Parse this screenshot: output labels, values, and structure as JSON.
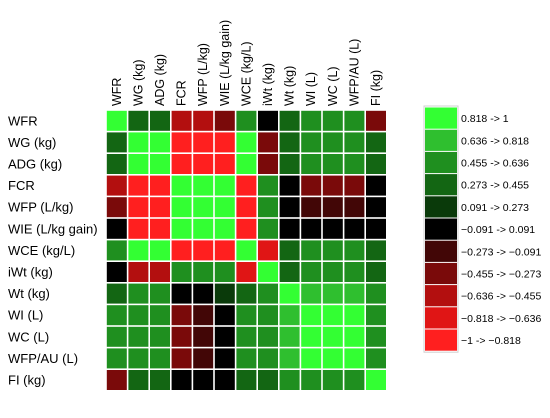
{
  "chart_data": {
    "type": "heatmap",
    "columns": [
      "WFR",
      "WG (kg)",
      "ADG (kg)",
      "FCR",
      "WFP (L/kg)",
      "WIE (L/kg gain)",
      "WCE (kg/L)",
      "iWt (kg)",
      "Wt (kg)",
      "WI (L)",
      "WC (L)",
      "WFP/AU (L)",
      "FI (kg)"
    ],
    "rows": [
      "WFR",
      "WG (kg)",
      "ADG (kg)",
      "FCR",
      "WFP (L/kg)",
      "WIE (L/kg gain)",
      "WCE (kg/L)",
      "iWt (kg)",
      "Wt (kg)",
      "WI (L)",
      "WC (L)",
      "WFP/AU (L)",
      "FI (kg)"
    ],
    "values": [
      [
        1,
        0.35,
        0.35,
        -0.6,
        -0.55,
        -0.3,
        0.6,
        0,
        0.35,
        0.5,
        0.5,
        0.5,
        -0.4
      ],
      [
        0.35,
        1,
        0.85,
        -0.9,
        -0.9,
        -0.9,
        0.85,
        -0.4,
        0.3,
        0.5,
        0.5,
        0.5,
        0.3
      ],
      [
        0.35,
        0.85,
        1,
        -0.9,
        -0.9,
        -0.9,
        0.85,
        -0.4,
        0.3,
        0.5,
        0.5,
        0.5,
        0.3
      ],
      [
        -0.5,
        -0.9,
        -0.9,
        1,
        0.9,
        0.9,
        -0.9,
        0.5,
        0,
        -0.4,
        -0.3,
        -0.3,
        0
      ],
      [
        -0.4,
        -0.9,
        -0.9,
        0.9,
        1,
        0.9,
        -0.9,
        0.5,
        0,
        -0.2,
        -0.2,
        -0.2,
        0
      ],
      [
        0,
        -0.9,
        -0.9,
        0.9,
        0.9,
        1,
        -0.9,
        0.5,
        0,
        0,
        0,
        0,
        0
      ],
      [
        0.5,
        0.9,
        0.9,
        -0.9,
        -0.9,
        -0.9,
        1,
        -0.8,
        0.35,
        0.5,
        0.5,
        0.5,
        0.35
      ],
      [
        0,
        -0.5,
        -0.5,
        0.5,
        0.5,
        0.5,
        -0.8,
        1,
        0.3,
        0.5,
        0.5,
        0.5,
        0.35
      ],
      [
        0.3,
        0.5,
        0.5,
        0,
        0,
        0.2,
        0.35,
        0.5,
        1,
        0.8,
        0.8,
        0.8,
        0.5
      ],
      [
        0.5,
        0.5,
        0.5,
        -0.4,
        -0.2,
        0,
        0.5,
        0.5,
        0.8,
        1,
        0.9,
        0.9,
        0.5
      ],
      [
        0.5,
        0.5,
        0.5,
        -0.3,
        -0.2,
        0,
        0.5,
        0.5,
        0.8,
        0.9,
        1,
        0.9,
        0.5
      ],
      [
        0.5,
        0.5,
        0.5,
        -0.3,
        -0.2,
        0,
        0.5,
        0.5,
        0.8,
        0.9,
        0.9,
        1,
        0.5
      ],
      [
        -0.4,
        0.3,
        0.3,
        0,
        0,
        0,
        0.35,
        0.35,
        0.5,
        0.5,
        0.5,
        0.5,
        1
      ]
    ],
    "color_scale": {
      "min": -1,
      "max": 1,
      "bins": [
        {
          "label": "−1 -> −0.818",
          "color": "#ff1f1f"
        },
        {
          "label": "−0.818 -> −0.636",
          "color": "#e01515"
        },
        {
          "label": "−0.636 -> −0.455",
          "color": "#b30f0f"
        },
        {
          "label": "−0.455 -> −0.273",
          "color": "#7a0a0a"
        },
        {
          "label": "−0.273 -> −0.091",
          "color": "#420606"
        },
        {
          "label": "−0.091 -> 0.091",
          "color": "#000000"
        },
        {
          "label": "0.091 -> 0.273",
          "color": "#0a3a0a"
        },
        {
          "label": "0.273 -> 0.455",
          "color": "#136613"
        },
        {
          "label": "0.455 -> 0.636",
          "color": "#1f8f1f"
        },
        {
          "label": "0.636 -> 0.818",
          "color": "#2fbf2f"
        },
        {
          "label": "0.818 -> 1",
          "color": "#33ff33"
        }
      ]
    },
    "legend_position": "right"
  }
}
